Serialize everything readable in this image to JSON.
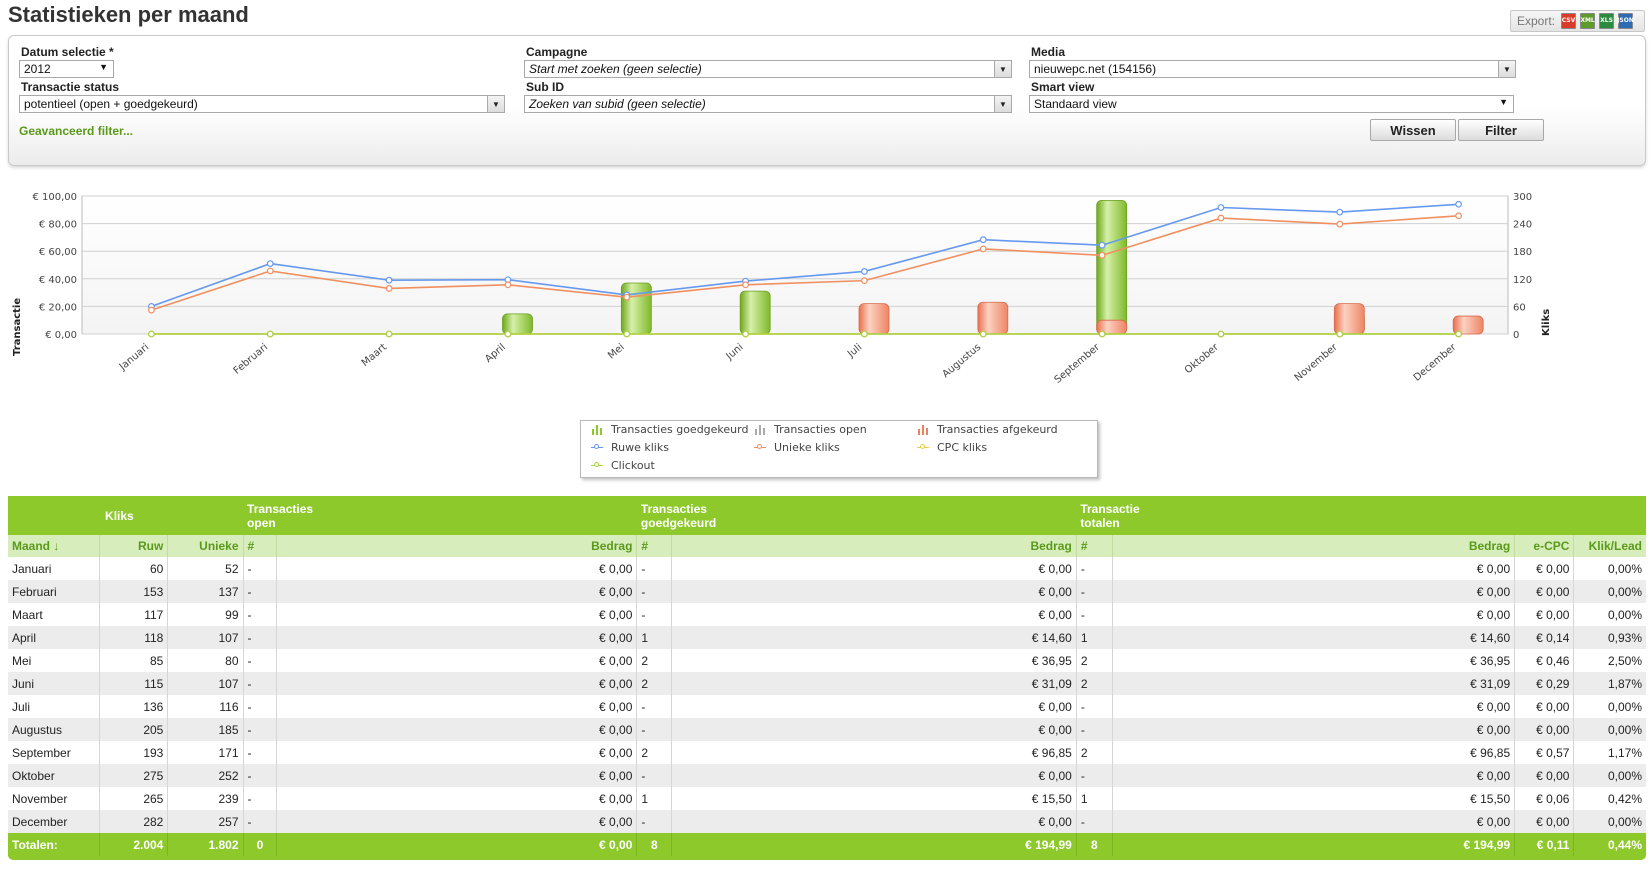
{
  "page": {
    "title": "Statistieken per maand"
  },
  "export": {
    "label": "Export:",
    "icons": [
      "CSV",
      "XML",
      "XLS",
      "JSON"
    ]
  },
  "filters": {
    "datum_label": "Datum selectie *",
    "datum_value": "2012",
    "campagne_label": "Campagne",
    "campagne_value": "Start met zoeken (geen selectie)",
    "media_label": "Media",
    "media_value": "nieuwepc.net (154156)",
    "status_label": "Transactie status",
    "status_value": "potentieel (open + goedgekeurd)",
    "subid_label": "Sub ID",
    "subid_value": "Zoeken van subid (geen selectie)",
    "smartview_label": "Smart view",
    "smartview_value": "Standaard view",
    "advanced_link": "Geavanceerd filter...",
    "btn_wissen": "Wissen",
    "btn_filter": "Filter"
  },
  "chart_data": {
    "type": "bar",
    "categories": [
      "Januari",
      "Februari",
      "Maart",
      "April",
      "Mei",
      "Juni",
      "Juli",
      "Augustus",
      "September",
      "Oktober",
      "November",
      "December"
    ],
    "ylabel": "Transactie",
    "y2label": "Kliks",
    "ylim": [
      0,
      100
    ],
    "y2lim": [
      0,
      300
    ],
    "y_ticks": [
      "€ 0,00",
      "€ 20,00",
      "€ 40,00",
      "€ 60,00",
      "€ 80,00",
      "€ 100,00"
    ],
    "y2_ticks": [
      "0",
      "60",
      "120",
      "180",
      "240",
      "300"
    ],
    "grid": true,
    "legend_position": "bottom",
    "series": [
      {
        "name": "Transacties goedgekeurd",
        "kind": "bar",
        "axis": "left",
        "color": "#8ec92c",
        "values": [
          0,
          0,
          0,
          14.6,
          36.95,
          31.09,
          0,
          0,
          96.85,
          0,
          15.5,
          0
        ]
      },
      {
        "name": "Transacties open",
        "kind": "bar",
        "axis": "left",
        "color": "#aaaaaa",
        "values": [
          0,
          0,
          0,
          0,
          0,
          0,
          0,
          0,
          0,
          0,
          0,
          0
        ]
      },
      {
        "name": "Transacties afgekeurd",
        "kind": "bar",
        "axis": "left",
        "color": "#f08060",
        "values": [
          0,
          0,
          0,
          0,
          0,
          0,
          22,
          23,
          10,
          0,
          22,
          13
        ]
      },
      {
        "name": "Ruwe kliks",
        "kind": "line",
        "axis": "right",
        "color": "#6699ee",
        "values": [
          60,
          153,
          117,
          118,
          85,
          115,
          136,
          205,
          193,
          275,
          265,
          282
        ]
      },
      {
        "name": "Unieke kliks",
        "kind": "line",
        "axis": "right",
        "color": "#f09060",
        "values": [
          52,
          137,
          99,
          107,
          80,
          107,
          116,
          185,
          171,
          252,
          239,
          257
        ]
      },
      {
        "name": "CPC kliks",
        "kind": "line",
        "axis": "right",
        "color": "#e8d040",
        "values": [
          0,
          0,
          0,
          0,
          0,
          0,
          0,
          0,
          0,
          0,
          0,
          0
        ]
      },
      {
        "name": "Clickout",
        "kind": "line",
        "axis": "right",
        "color": "#a8d040",
        "values": [
          0,
          0,
          0,
          0,
          0,
          0,
          0,
          0,
          0,
          0,
          0,
          0
        ]
      }
    ]
  },
  "table": {
    "group_headers": {
      "kliks": "Kliks",
      "open_l1": "Transacties",
      "open_l2": "open",
      "good_l1": "Transacties",
      "good_l2": "goedgekeurd",
      "tot_l1": "Transactie",
      "tot_l2": "totalen"
    },
    "columns": [
      "Maand ↓",
      "Ruw",
      "Unieke",
      "#",
      "Bedrag",
      "#",
      "Bedrag",
      "#",
      "Bedrag",
      "e-CPC",
      "Klik/Lead"
    ],
    "rows": [
      [
        "Januari",
        "60",
        "52",
        "-",
        "€ 0,00",
        "-",
        "€ 0,00",
        "-",
        "€ 0,00",
        "€ 0,00",
        "0,00%"
      ],
      [
        "Februari",
        "153",
        "137",
        "-",
        "€ 0,00",
        "-",
        "€ 0,00",
        "-",
        "€ 0,00",
        "€ 0,00",
        "0,00%"
      ],
      [
        "Maart",
        "117",
        "99",
        "-",
        "€ 0,00",
        "-",
        "€ 0,00",
        "-",
        "€ 0,00",
        "€ 0,00",
        "0,00%"
      ],
      [
        "April",
        "118",
        "107",
        "-",
        "€ 0,00",
        "1",
        "€ 14,60",
        "1",
        "€ 14,60",
        "€ 0,14",
        "0,93%"
      ],
      [
        "Mei",
        "85",
        "80",
        "-",
        "€ 0,00",
        "2",
        "€ 36,95",
        "2",
        "€ 36,95",
        "€ 0,46",
        "2,50%"
      ],
      [
        "Juni",
        "115",
        "107",
        "-",
        "€ 0,00",
        "2",
        "€ 31,09",
        "2",
        "€ 31,09",
        "€ 0,29",
        "1,87%"
      ],
      [
        "Juli",
        "136",
        "116",
        "-",
        "€ 0,00",
        "-",
        "€ 0,00",
        "-",
        "€ 0,00",
        "€ 0,00",
        "0,00%"
      ],
      [
        "Augustus",
        "205",
        "185",
        "-",
        "€ 0,00",
        "-",
        "€ 0,00",
        "-",
        "€ 0,00",
        "€ 0,00",
        "0,00%"
      ],
      [
        "September",
        "193",
        "171",
        "-",
        "€ 0,00",
        "2",
        "€ 96,85",
        "2",
        "€ 96,85",
        "€ 0,57",
        "1,17%"
      ],
      [
        "Oktober",
        "275",
        "252",
        "-",
        "€ 0,00",
        "-",
        "€ 0,00",
        "-",
        "€ 0,00",
        "€ 0,00",
        "0,00%"
      ],
      [
        "November",
        "265",
        "239",
        "-",
        "€ 0,00",
        "1",
        "€ 15,50",
        "1",
        "€ 15,50",
        "€ 0,06",
        "0,42%"
      ],
      [
        "December",
        "282",
        "257",
        "-",
        "€ 0,00",
        "-",
        "€ 0,00",
        "-",
        "€ 0,00",
        "€ 0,00",
        "0,00%"
      ]
    ],
    "totals": [
      "Totalen:",
      "2.004",
      "1.802",
      "0",
      "€ 0,00",
      "8",
      "€ 194,99",
      "8",
      "€ 194,99",
      "€ 0,11",
      "0,44%"
    ]
  }
}
